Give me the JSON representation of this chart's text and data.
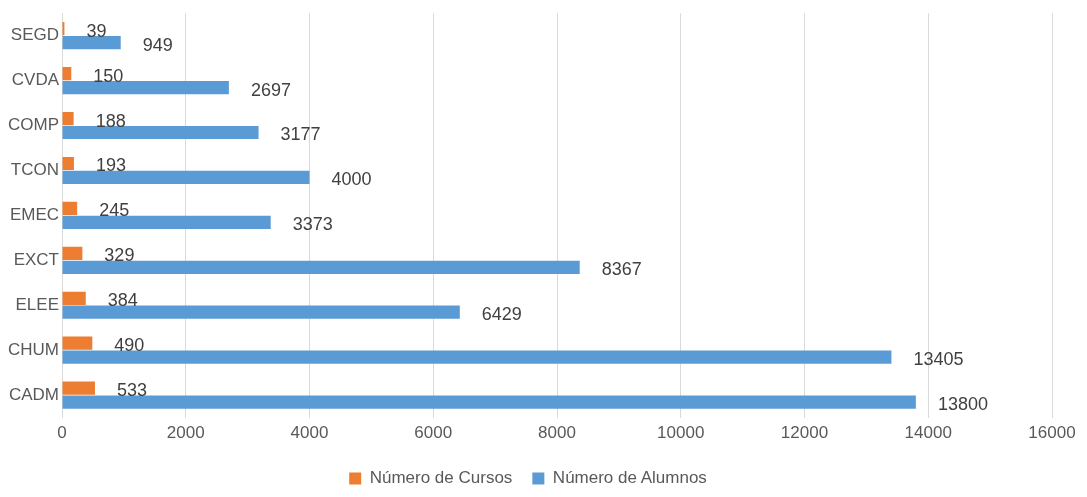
{
  "chart_data": {
    "type": "bar",
    "orientation": "horizontal",
    "categories": [
      "SEGD",
      "CVDA",
      "COMP",
      "TCON",
      "EMEC",
      "EXCT",
      "ELEE",
      "CHUM",
      "CADM"
    ],
    "series": [
      {
        "name": "Número de Cursos",
        "color": "#ed7d31",
        "values": [
          39,
          150,
          188,
          193,
          245,
          329,
          384,
          490,
          533
        ]
      },
      {
        "name": "Número de Alumnos",
        "color": "#5b9bd5",
        "values": [
          949,
          2697,
          3177,
          4000,
          3373,
          8367,
          6429,
          13405,
          13800
        ]
      }
    ],
    "xlim": [
      0,
      16000
    ],
    "xticks": [
      0,
      2000,
      4000,
      6000,
      8000,
      10000,
      12000,
      14000,
      16000
    ],
    "grid": "x",
    "legend": "bottom",
    "data_labels": true
  }
}
